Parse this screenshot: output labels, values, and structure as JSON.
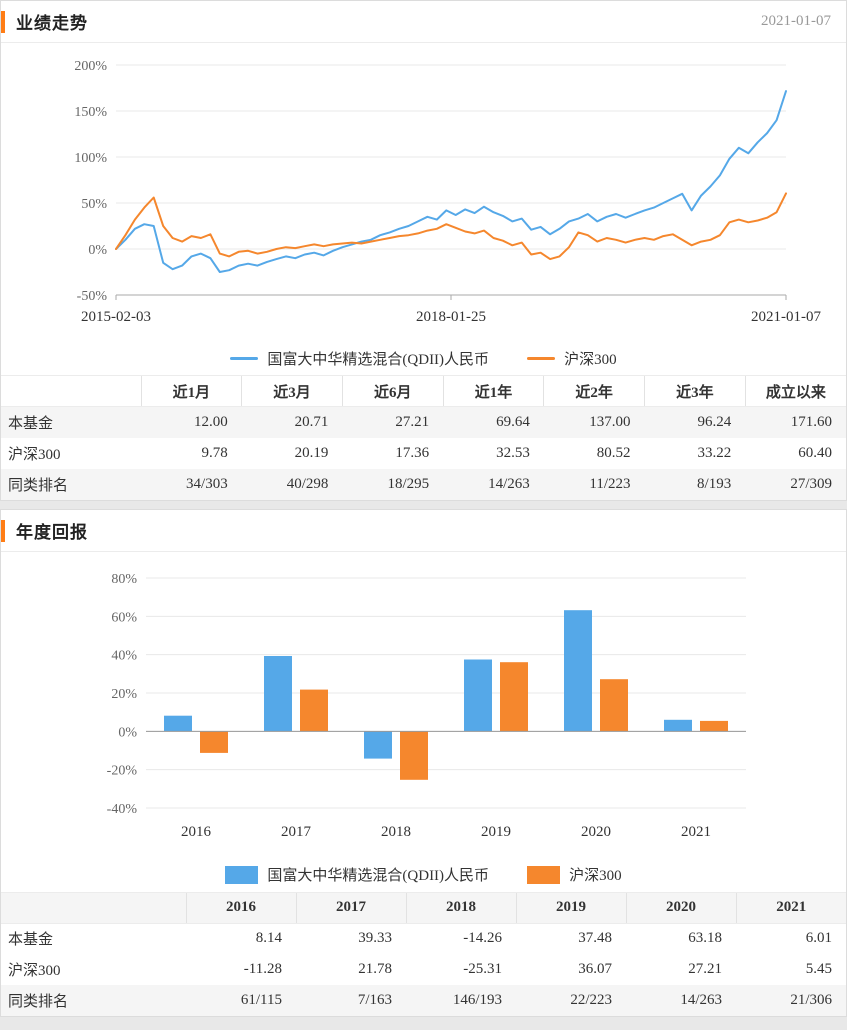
{
  "page": {
    "accent_color": "#ff7d15",
    "background": "#e8e8e8"
  },
  "panel1": {
    "title": "业绩走势",
    "date": "2021-01-07",
    "table": {
      "corner": "",
      "headers": [
        "近1月",
        "近3月",
        "近6月",
        "近1年",
        "近2年",
        "近3年",
        "成立以来"
      ],
      "rows": [
        {
          "label": "本基金",
          "values": [
            "12.00",
            "20.71",
            "27.21",
            "69.64",
            "137.00",
            "96.24",
            "171.60"
          ]
        },
        {
          "label": "沪深300",
          "values": [
            "9.78",
            "20.19",
            "17.36",
            "32.53",
            "80.52",
            "33.22",
            "60.40"
          ]
        },
        {
          "label": "同类排名",
          "values": [
            "34/303",
            "40/298",
            "18/295",
            "14/263",
            "11/223",
            "8/193",
            "27/309"
          ]
        }
      ]
    }
  },
  "panel2": {
    "title": "年度回报",
    "table": {
      "corner": "",
      "headers": [
        "2016",
        "2017",
        "2018",
        "2019",
        "2020",
        "2021"
      ],
      "rows": [
        {
          "label": "本基金",
          "values": [
            "8.14",
            "39.33",
            "-14.26",
            "37.48",
            "63.18",
            "6.01"
          ]
        },
        {
          "label": "沪深300",
          "values": [
            "-11.28",
            "21.78",
            "-25.31",
            "36.07",
            "27.21",
            "5.45"
          ]
        },
        {
          "label": "同类排名",
          "values": [
            "61/115",
            "7/163",
            "146/193",
            "22/223",
            "14/263",
            "21/306"
          ]
        }
      ]
    }
  },
  "chart_data": [
    {
      "type": "line",
      "title": "业绩走势",
      "x_labels": [
        "2015-02-03",
        "2018-01-25",
        "2021-01-07"
      ],
      "x_unit": "month",
      "x_range": [
        "2015-02",
        "2021-01"
      ],
      "ylim": [
        -50,
        200
      ],
      "yticks": [
        -50,
        0,
        50,
        100,
        150,
        200
      ],
      "ytick_format": "percent",
      "grid": "horizontal",
      "legend_position": "bottom",
      "series": [
        {
          "name": "国富大中华精选混合(QDII)人民币",
          "color": "#55a8e8",
          "values": [
            0,
            10,
            22,
            27,
            25,
            -15,
            -22,
            -18,
            -8,
            -5,
            -10,
            -25,
            -23,
            -18,
            -16,
            -18,
            -14,
            -11,
            -8,
            -10,
            -6,
            -4,
            -7,
            -2,
            2,
            5,
            8,
            10,
            15,
            18,
            22,
            25,
            30,
            35,
            32,
            42,
            37,
            43,
            39,
            46,
            40,
            36,
            30,
            33,
            21,
            24,
            16,
            22,
            30,
            33,
            38,
            30,
            35,
            38,
            34,
            38,
            42,
            45,
            50,
            55,
            60,
            42,
            58,
            68,
            80,
            98,
            110,
            104,
            116,
            126,
            140,
            171.6
          ]
        },
        {
          "name": "沪深300",
          "color": "#f5872d",
          "values": [
            0,
            15,
            32,
            45,
            56,
            25,
            12,
            8,
            14,
            12,
            16,
            -5,
            -8,
            -3,
            -2,
            -5,
            -3,
            0,
            2,
            1,
            3,
            5,
            3,
            5,
            6,
            7,
            6,
            8,
            10,
            12,
            14,
            15,
            17,
            20,
            22,
            27,
            23,
            19,
            17,
            20,
            12,
            9,
            4,
            7,
            -6,
            -4,
            -11,
            -8,
            2,
            18,
            15,
            8,
            12,
            10,
            7,
            10,
            12,
            10,
            14,
            16,
            10,
            4,
            8,
            10,
            15,
            29,
            32,
            29,
            31,
            34,
            40,
            60.4
          ]
        }
      ]
    },
    {
      "type": "bar",
      "title": "年度回报",
      "categories": [
        "2016",
        "2017",
        "2018",
        "2019",
        "2020",
        "2021"
      ],
      "ylim": [
        -40,
        80
      ],
      "yticks": [
        -40,
        -20,
        0,
        20,
        40,
        60,
        80
      ],
      "ytick_format": "percent",
      "grid": "horizontal",
      "legend_position": "bottom",
      "series": [
        {
          "name": "国富大中华精选混合(QDII)人民币",
          "color": "#55a8e8",
          "values": [
            8.14,
            39.33,
            -14.26,
            37.48,
            63.18,
            6.01
          ]
        },
        {
          "name": "沪深300",
          "color": "#f5872d",
          "values": [
            -11.28,
            21.78,
            -25.31,
            36.07,
            27.21,
            5.45
          ]
        }
      ]
    }
  ]
}
